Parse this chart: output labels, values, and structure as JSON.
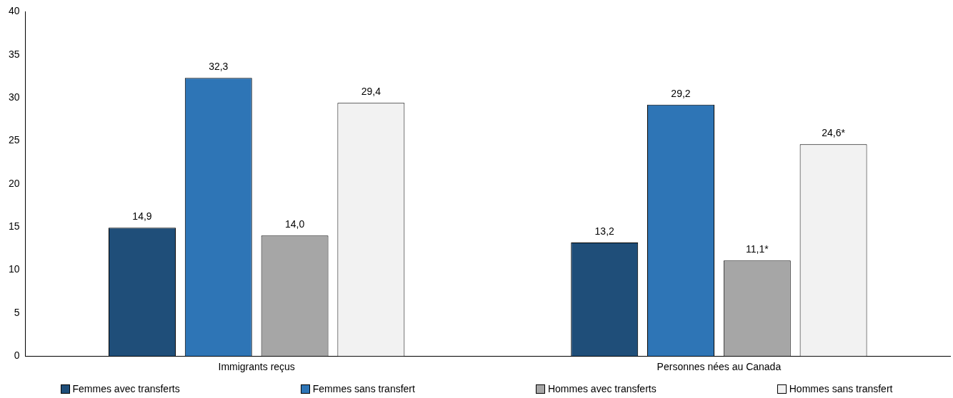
{
  "chart_data": {
    "type": "bar",
    "categories": [
      "Immigrants reçus",
      "Personnes nées au Canada"
    ],
    "series": [
      {
        "name": "Femmes avec transferts",
        "color": "#1f4e79",
        "values": [
          14.9,
          13.2
        ],
        "value_labels": [
          "14,9",
          "13,2"
        ]
      },
      {
        "name": "Femmes sans transfert",
        "color": "#2e75b6",
        "values": [
          32.3,
          29.2
        ],
        "value_labels": [
          "32,3",
          "29,2"
        ]
      },
      {
        "name": "Hommes avec transferts",
        "color": "#a6a6a6",
        "values": [
          14.0,
          11.1
        ],
        "value_labels": [
          "14,0",
          "11,1*"
        ]
      },
      {
        "name": "Hommes sans transfert",
        "color": "#f2f2f2",
        "values": [
          29.4,
          24.6
        ],
        "value_labels": [
          "29,4",
          "24,6*"
        ]
      }
    ],
    "ylim": [
      0,
      40
    ],
    "yticks": [
      0,
      5,
      10,
      15,
      20,
      25,
      30,
      35,
      40
    ],
    "grid": false,
    "legend": "bottom"
  }
}
